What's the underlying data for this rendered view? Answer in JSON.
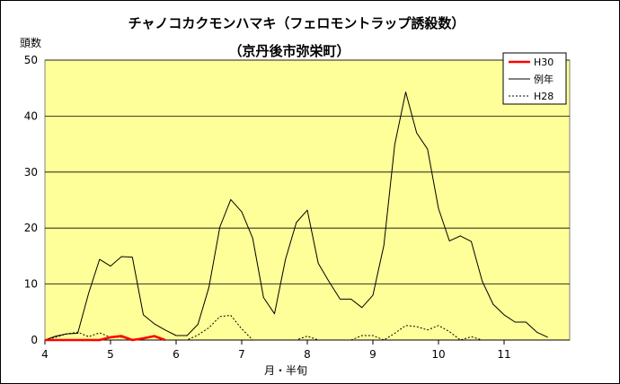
{
  "chart_data": {
    "type": "line",
    "title": "チャノコカクモンハマキ（フェロモントラップ誘殺数）",
    "subtitle": "（京丹後市弥栄町）",
    "ylabel": "頭数",
    "xlabel": "月・半旬",
    "ylim": [
      0,
      50
    ],
    "yticks": [
      0,
      10,
      20,
      30,
      40,
      50
    ],
    "xticks": [
      "4",
      "5",
      "6",
      "7",
      "8",
      "9",
      "10",
      "11"
    ],
    "grid": "horizontal",
    "legend_position": "top-right",
    "background_color": "#ffff99",
    "series": [
      {
        "name": "H30",
        "color": "#ff0000",
        "style": "solid-thick",
        "values": [
          0,
          0,
          0,
          0,
          0,
          0,
          0.5,
          0.7,
          0,
          0.3,
          0.7,
          0
        ]
      },
      {
        "name": "例年",
        "color": "#000000",
        "style": "solid",
        "values": [
          0,
          0.7,
          1.1,
          1.2,
          8.4,
          14.4,
          13.2,
          14.9,
          14.8,
          4.5,
          2.9,
          1.8,
          0.8,
          0.8,
          2.8,
          9.4,
          20.2,
          25.1,
          22.9,
          18.2,
          7.6,
          4.7,
          14.4,
          21.0,
          23.2,
          13.7,
          10.4,
          7.3,
          7.3,
          5.8,
          8.0,
          16.9,
          34.9,
          44.3,
          37.0,
          34.1,
          23.5,
          17.7,
          18.6,
          17.6,
          10.5,
          6.4,
          4.5,
          3.2,
          3.2,
          1.4,
          0.5
        ]
      },
      {
        "name": "H28",
        "color": "#000000",
        "style": "dotted",
        "values": [
          0,
          0.5,
          1.1,
          1.4,
          0.6,
          1.3,
          0.5,
          0.5,
          0,
          0,
          0,
          0,
          0,
          0,
          0.9,
          2.2,
          4.2,
          4.4,
          2.0,
          0,
          0,
          0,
          0,
          0,
          0.7,
          0,
          0,
          0,
          0,
          0.8,
          0.8,
          0,
          1.2,
          2.6,
          2.4,
          1.8,
          2.6,
          1.5,
          0,
          0.6,
          0,
          0,
          0,
          0,
          0,
          0,
          0
        ]
      }
    ]
  }
}
